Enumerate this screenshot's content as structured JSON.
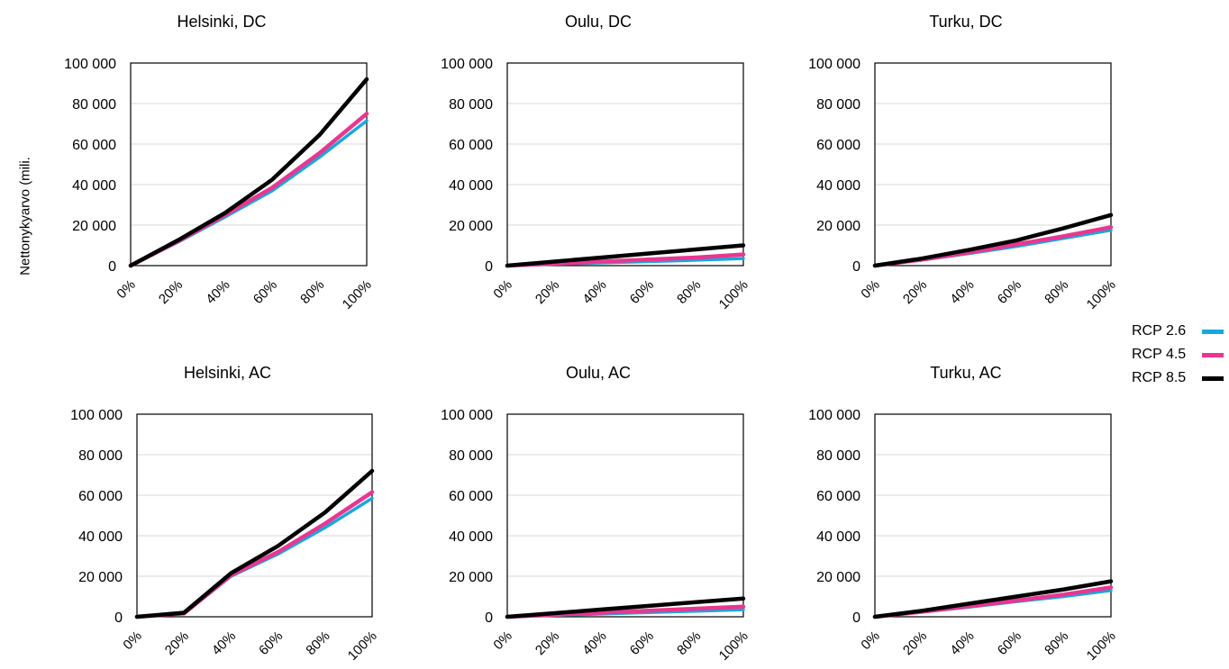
{
  "y_axis_label": "Nettonykyarvo (mili.",
  "colors": {
    "RCP 2.6": "#1aa7dc",
    "RCP 4.5": "#e8378f",
    "RCP 8.5": "#000000"
  },
  "legend": [
    {
      "label": "RCP 2.6",
      "color": "#1aa7dc"
    },
    {
      "label": "RCP 4.5",
      "color": "#e8378f"
    },
    {
      "label": "RCP 8.5",
      "color": "#000000"
    }
  ],
  "chart_data": [
    {
      "type": "line",
      "title": "Helsinki, DC",
      "categories": [
        "0%",
        "20%",
        "40%",
        "60%",
        "80%",
        "100%"
      ],
      "ytick_labels": [
        "0",
        "20 000",
        "40 000",
        "60 000",
        "80 000",
        "100 000"
      ],
      "ylim": [
        0,
        100000
      ],
      "grid": true,
      "legend": "right",
      "series": [
        {
          "name": "RCP 2.6",
          "values": [
            0,
            11500,
            24000,
            37000,
            53500,
            71500
          ]
        },
        {
          "name": "RCP 4.5",
          "values": [
            0,
            12000,
            25000,
            38500,
            55500,
            75000
          ]
        },
        {
          "name": "RCP 8.5",
          "values": [
            0,
            12500,
            26000,
            42500,
            64500,
            92000
          ]
        }
      ]
    },
    {
      "type": "line",
      "title": "Oulu, DC",
      "categories": [
        "0%",
        "20%",
        "40%",
        "60%",
        "80%",
        "100%"
      ],
      "ytick_labels": [
        "0",
        "20 000",
        "40 000",
        "60 000",
        "80 000",
        "100 000"
      ],
      "ylim": [
        0,
        100000
      ],
      "grid": true,
      "legend": "right",
      "series": [
        {
          "name": "RCP 2.6",
          "values": [
            0,
            700,
            1400,
            2000,
            2700,
            3500
          ]
        },
        {
          "name": "RCP 4.5",
          "values": [
            0,
            1000,
            2000,
            3000,
            4000,
            5500
          ]
        },
        {
          "name": "RCP 8.5",
          "values": [
            0,
            2000,
            4000,
            6000,
            8000,
            10000
          ]
        }
      ]
    },
    {
      "type": "line",
      "title": "Turku, DC",
      "categories": [
        "0%",
        "20%",
        "40%",
        "60%",
        "80%",
        "100%"
      ],
      "ytick_labels": [
        "0",
        "20 000",
        "40 000",
        "60 000",
        "80 000",
        "100 000"
      ],
      "ylim": [
        0,
        100000
      ],
      "grid": true,
      "legend": "right",
      "series": [
        {
          "name": "RCP 2.6",
          "values": [
            0,
            2800,
            6000,
            9500,
            13500,
            17500
          ]
        },
        {
          "name": "RCP 4.5",
          "values": [
            0,
            3000,
            6500,
            10500,
            14500,
            19000
          ]
        },
        {
          "name": "RCP 8.5",
          "values": [
            0,
            3500,
            7800,
            12500,
            18500,
            25000
          ]
        }
      ]
    },
    {
      "type": "line",
      "title": "Helsinki, AC",
      "categories": [
        "0%",
        "20%",
        "40%",
        "60%",
        "80%",
        "100%"
      ],
      "ytick_labels": [
        "0",
        "20 000",
        "40 000",
        "60 000",
        "80 000",
        "100 000"
      ],
      "ylim": [
        0,
        100000
      ],
      "grid": true,
      "legend": "right",
      "series": [
        {
          "name": "RCP 2.6",
          "values": [
            0,
            1500,
            20000,
            31000,
            44000,
            58500
          ]
        },
        {
          "name": "RCP 4.5",
          "values": [
            0,
            1700,
            20500,
            32000,
            46000,
            61500
          ]
        },
        {
          "name": "RCP 8.5",
          "values": [
            0,
            2000,
            21500,
            35000,
            51500,
            72000
          ]
        }
      ]
    },
    {
      "type": "line",
      "title": "Oulu, AC",
      "categories": [
        "0%",
        "20%",
        "40%",
        "60%",
        "80%",
        "100%"
      ],
      "ytick_labels": [
        "0",
        "20 000",
        "40 000",
        "60 000",
        "80 000",
        "100 000"
      ],
      "ylim": [
        0,
        100000
      ],
      "grid": true,
      "legend": "right",
      "series": [
        {
          "name": "RCP 2.6",
          "values": [
            0,
            700,
            1400,
            2100,
            2800,
            3500
          ]
        },
        {
          "name": "RCP 4.5",
          "values": [
            0,
            1000,
            2000,
            3000,
            4000,
            5000
          ]
        },
        {
          "name": "RCP 8.5",
          "values": [
            0,
            1800,
            3600,
            5400,
            7200,
            9000
          ]
        }
      ]
    },
    {
      "type": "line",
      "title": "Turku, AC",
      "categories": [
        "0%",
        "20%",
        "40%",
        "60%",
        "80%",
        "100%"
      ],
      "ytick_labels": [
        "0",
        "20 000",
        "40 000",
        "60 000",
        "80 000",
        "100 000"
      ],
      "ylim": [
        0,
        100000
      ],
      "grid": true,
      "legend": "right",
      "series": [
        {
          "name": "RCP 2.6",
          "values": [
            0,
            2300,
            4800,
            7500,
            10000,
            13000
          ]
        },
        {
          "name": "RCP 4.5",
          "values": [
            0,
            2500,
            5200,
            8000,
            11000,
            14500
          ]
        },
        {
          "name": "RCP 8.5",
          "values": [
            0,
            3000,
            6500,
            10000,
            13500,
            17500
          ]
        }
      ]
    }
  ]
}
